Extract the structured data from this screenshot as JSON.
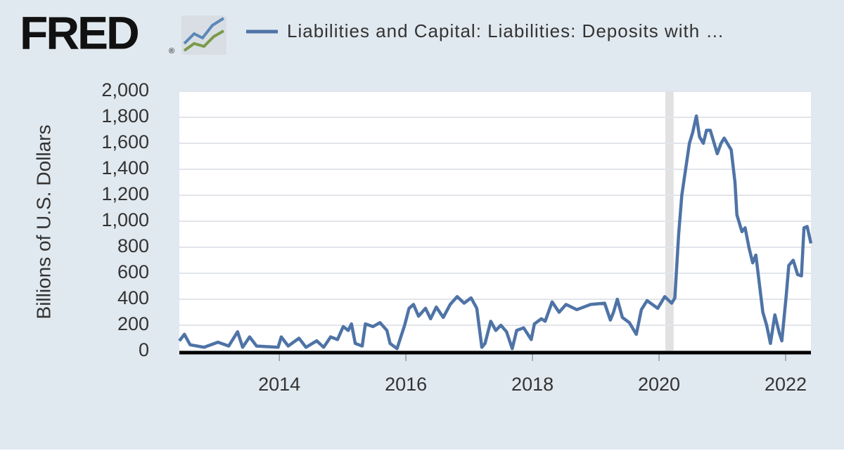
{
  "chart_data": {
    "type": "line",
    "logo": "FRED",
    "logo_mark": "®",
    "y_label": "Billions of U.S. Dollars",
    "x": [
      2012.42,
      2012.5,
      2012.59,
      2012.81,
      2013.03,
      2013.2,
      2013.34,
      2013.42,
      2013.53,
      2013.64,
      2013.98,
      2014.03,
      2014.14,
      2014.31,
      2014.42,
      2014.59,
      2014.7,
      2014.81,
      2014.92,
      2015.01,
      2015.09,
      2015.14,
      2015.2,
      2015.31,
      2015.36,
      2015.48,
      2015.59,
      2015.7,
      2015.75,
      2015.86,
      2015.98,
      2016.05,
      2016.12,
      2016.2,
      2016.31,
      2016.39,
      2016.48,
      2016.59,
      2016.7,
      2016.81,
      2016.92,
      2017.03,
      2017.12,
      2017.2,
      2017.25,
      2017.34,
      2017.42,
      2017.5,
      2017.59,
      2017.68,
      2017.75,
      2017.86,
      2017.98,
      2018.03,
      2018.14,
      2018.2,
      2018.31,
      2018.42,
      2018.53,
      2018.7,
      2018.92,
      2019.14,
      2019.23,
      2019.28,
      2019.34,
      2019.42,
      2019.53,
      2019.64,
      2019.72,
      2019.81,
      2019.98,
      2020.09,
      2020.2,
      2020.25,
      2020.31,
      2020.36,
      2020.42,
      2020.48,
      2020.53,
      2020.59,
      2020.64,
      2020.7,
      2020.75,
      2020.81,
      2020.92,
      2020.98,
      2021.03,
      2021.14,
      2021.2,
      2021.23,
      2021.31,
      2021.36,
      2021.42,
      2021.48,
      2021.53,
      2021.59,
      2021.64,
      2021.7,
      2021.76,
      2021.83,
      2021.9,
      2021.94,
      2022.01,
      2022.05,
      2022.12,
      2022.19,
      2022.25,
      2022.29,
      2022.34,
      2022.4
    ],
    "series": [
      {
        "name": "Liabilities and Capital: Liabilities: Deposits with …",
        "color": "#4e73a6",
        "values": [
          80,
          130,
          50,
          30,
          70,
          40,
          150,
          30,
          110,
          40,
          30,
          110,
          40,
          100,
          30,
          80,
          30,
          110,
          90,
          190,
          160,
          210,
          60,
          40,
          210,
          190,
          220,
          160,
          60,
          20,
          200,
          330,
          360,
          270,
          330,
          250,
          340,
          260,
          360,
          420,
          370,
          410,
          330,
          30,
          60,
          230,
          160,
          200,
          150,
          20,
          160,
          180,
          90,
          210,
          250,
          230,
          380,
          300,
          360,
          320,
          360,
          370,
          240,
          300,
          400,
          260,
          220,
          130,
          320,
          390,
          330,
          420,
          370,
          410,
          900,
          1200,
          1400,
          1600,
          1680,
          1810,
          1650,
          1600,
          1700,
          1700,
          1520,
          1600,
          1640,
          1550,
          1300,
          1050,
          920,
          950,
          800,
          680,
          740,
          500,
          300,
          200,
          60,
          280,
          140,
          80,
          430,
          660,
          700,
          590,
          580,
          950,
          960,
          830
        ]
      }
    ],
    "recession": [
      [
        2020.1,
        2020.23
      ]
    ],
    "xlim": [
      2012.42,
      2022.4
    ],
    "xticks": [
      2014,
      2016,
      2018,
      2020,
      2022
    ],
    "ylim": [
      0,
      2000
    ],
    "yticks": [
      0,
      200,
      400,
      600,
      800,
      {
        "value": 1000,
        "label": "1,000"
      },
      {
        "value": 1200,
        "label": "1,200"
      },
      {
        "value": 1400,
        "label": "1,400"
      },
      {
        "value": 1600,
        "label": "1,600"
      },
      {
        "value": 1800,
        "label": "1,800"
      },
      {
        "value": 2000,
        "label": "2,000"
      }
    ],
    "grid": true
  }
}
